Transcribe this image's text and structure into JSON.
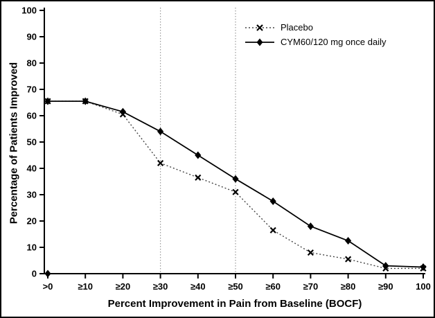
{
  "figure": {
    "x_axis_title": "Percent Improvement in Pain from Baseline (BOCF)",
    "y_axis_title": "Percentage of Patients Improved"
  },
  "chart_data": {
    "type": "line",
    "title": "",
    "xlabel": "Percent Improvement in Pain from Baseline (BOCF)",
    "ylabel": "Percentage of Patients Improved",
    "categories": [
      ">0",
      "≥10",
      "≥20",
      "≥30",
      "≥40",
      "≥50",
      "≥60",
      "≥70",
      "≥80",
      "≥90",
      "100"
    ],
    "y_ticks": [
      0,
      10,
      20,
      30,
      40,
      50,
      60,
      70,
      80,
      90,
      100
    ],
    "ylim": [
      0,
      100
    ],
    "grid": false,
    "legend_position": "top-right",
    "reference_lines_x": [
      "≥30",
      "≥50"
    ],
    "series": [
      {
        "name": "Placebo",
        "marker": "x",
        "line_style": "dotted",
        "color": "#444444",
        "marker_color": "#000000",
        "values": [
          65.5,
          65.5,
          60.5,
          42,
          36.5,
          31,
          16.5,
          8,
          5.5,
          2,
          2
        ]
      },
      {
        "name": "CYM60/120 mg once daily",
        "marker": "diamond",
        "line_style": "solid",
        "color": "#000000",
        "marker_color": "#000000",
        "values": [
          65.5,
          65.5,
          61.5,
          54,
          45,
          36,
          27.5,
          18,
          12.5,
          3,
          2.5
        ]
      }
    ],
    "extra_markers": [
      {
        "series": "CYM60/120 mg once daily",
        "category": ">0",
        "value": 0,
        "marker": "diamond"
      }
    ]
  },
  "colors": {
    "axis": "#000000",
    "reference_line": "#999999",
    "background": "#ffffff"
  }
}
